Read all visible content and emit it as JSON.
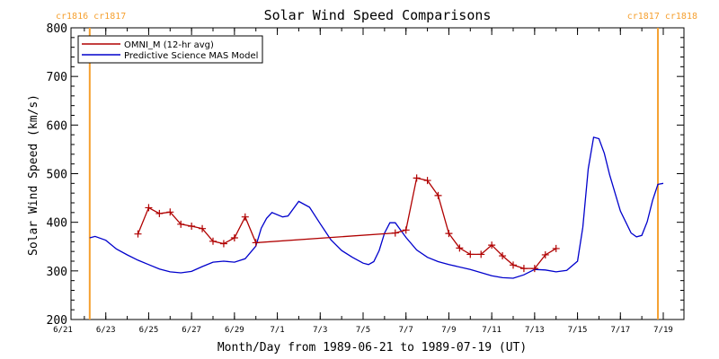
{
  "chart_data": {
    "type": "line",
    "title": "Solar Wind Speed Comparisons",
    "xlabel": "Month/Day from 1989-06-21 to 1989-07-19 (UT)",
    "ylabel": "Solar Wind Speed (km/s)",
    "xlim": [
      "1989-06-21",
      "1989-07-19"
    ],
    "ylim": [
      200,
      800
    ],
    "y_ticks": [
      200,
      300,
      400,
      500,
      600,
      700,
      800
    ],
    "x_ticks": [
      {
        "date": "1989-06-21",
        "label": "6/21"
      },
      {
        "date": "1989-06-23",
        "label": "6/23"
      },
      {
        "date": "1989-06-25",
        "label": "6/25"
      },
      {
        "date": "1989-06-27",
        "label": "6/27"
      },
      {
        "date": "1989-06-29",
        "label": "6/29"
      },
      {
        "date": "1989-07-01",
        "label": "7/1"
      },
      {
        "date": "1989-07-03",
        "label": "7/3"
      },
      {
        "date": "1989-07-05",
        "label": "7/5"
      },
      {
        "date": "1989-07-07",
        "label": "7/7"
      },
      {
        "date": "1989-07-09",
        "label": "7/9"
      },
      {
        "date": "1989-07-11",
        "label": "7/11"
      },
      {
        "date": "1989-07-13",
        "label": "7/13"
      },
      {
        "date": "1989-07-15",
        "label": "7/15"
      },
      {
        "date": "1989-07-17",
        "label": "7/17"
      },
      {
        "date": "1989-07-19",
        "label": "7/19"
      }
    ],
    "legend_position": "top-left",
    "carrington_markers": [
      {
        "date": "1989-06-22 06:00",
        "labels": [
          "cr1816",
          "cr1817"
        ],
        "label_side": "left",
        "color": "#f5a030"
      },
      {
        "date": "1989-07-18 18:00",
        "labels": [
          "cr1817",
          "cr1818"
        ],
        "label_side": "right",
        "color": "#f5a030"
      }
    ],
    "series": [
      {
        "name": "OMNI_M (12-hr avg)",
        "color": "#b00000",
        "marker": "plus",
        "points": [
          [
            "1989-06-24 12:00",
            376
          ],
          [
            "1989-06-25 00:00",
            430
          ],
          [
            "1989-06-25 12:00",
            418
          ],
          [
            "1989-06-26 00:00",
            421
          ],
          [
            "1989-06-26 12:00",
            396
          ],
          [
            "1989-06-27 00:00",
            392
          ],
          [
            "1989-06-27 12:00",
            387
          ],
          [
            "1989-06-28 00:00",
            361
          ],
          [
            "1989-06-28 12:00",
            356
          ],
          [
            "1989-06-29 00:00",
            368
          ],
          [
            "1989-06-29 12:00",
            411
          ],
          [
            "1989-06-30 00:00",
            358
          ],
          [
            "1989-07-06 12:00",
            378
          ],
          [
            "1989-07-07 00:00",
            384
          ],
          [
            "1989-07-07 12:00",
            491
          ],
          [
            "1989-07-08 00:00",
            486
          ],
          [
            "1989-07-08 12:00",
            455
          ],
          [
            "1989-07-09 00:00",
            377
          ],
          [
            "1989-07-09 12:00",
            347
          ],
          [
            "1989-07-10 00:00",
            334
          ],
          [
            "1989-07-10 12:00",
            334
          ],
          [
            "1989-07-11 00:00",
            353
          ],
          [
            "1989-07-11 12:00",
            331
          ],
          [
            "1989-07-12 00:00",
            312
          ],
          [
            "1989-07-12 12:00",
            305
          ],
          [
            "1989-07-13 00:00",
            305
          ],
          [
            "1989-07-13 12:00",
            333
          ],
          [
            "1989-07-14 00:00",
            346
          ]
        ]
      },
      {
        "name": "Predictive Science MAS Model",
        "color": "#0000cc",
        "marker": "none",
        "points": [
          [
            "1989-06-22 06:00",
            368
          ],
          [
            "1989-06-22 12:00",
            371
          ],
          [
            "1989-06-23 00:00",
            363
          ],
          [
            "1989-06-23 12:00",
            345
          ],
          [
            "1989-06-24 00:00",
            333
          ],
          [
            "1989-06-24 12:00",
            322
          ],
          [
            "1989-06-25 00:00",
            313
          ],
          [
            "1989-06-25 12:00",
            304
          ],
          [
            "1989-06-26 00:00",
            298
          ],
          [
            "1989-06-26 12:00",
            296
          ],
          [
            "1989-06-27 00:00",
            299
          ],
          [
            "1989-06-27 12:00",
            309
          ],
          [
            "1989-06-28 00:00",
            318
          ],
          [
            "1989-06-28 12:00",
            320
          ],
          [
            "1989-06-29 00:00",
            318
          ],
          [
            "1989-06-29 12:00",
            325
          ],
          [
            "1989-06-30 00:00",
            351
          ],
          [
            "1989-06-30 06:00",
            388
          ],
          [
            "1989-06-30 12:00",
            408
          ],
          [
            "1989-06-30 18:00",
            420
          ],
          [
            "1989-07-01 06:00",
            411
          ],
          [
            "1989-07-01 12:00",
            413
          ],
          [
            "1989-07-02 00:00",
            443
          ],
          [
            "1989-07-02 12:00",
            431
          ],
          [
            "1989-07-03 00:00",
            397
          ],
          [
            "1989-07-03 12:00",
            364
          ],
          [
            "1989-07-04 00:00",
            342
          ],
          [
            "1989-07-04 12:00",
            328
          ],
          [
            "1989-07-05 00:00",
            316
          ],
          [
            "1989-07-05 06:00",
            313
          ],
          [
            "1989-07-05 12:00",
            319
          ],
          [
            "1989-07-05 18:00",
            342
          ],
          [
            "1989-07-06 00:00",
            378
          ],
          [
            "1989-07-06 06:00",
            399
          ],
          [
            "1989-07-06 12:00",
            399
          ],
          [
            "1989-07-07 00:00",
            369
          ],
          [
            "1989-07-07 12:00",
            343
          ],
          [
            "1989-07-08 00:00",
            328
          ],
          [
            "1989-07-08 12:00",
            319
          ],
          [
            "1989-07-09 00:00",
            313
          ],
          [
            "1989-07-10 00:00",
            303
          ],
          [
            "1989-07-11 00:00",
            290
          ],
          [
            "1989-07-11 12:00",
            286
          ],
          [
            "1989-07-12 00:00",
            285
          ],
          [
            "1989-07-12 12:00",
            292
          ],
          [
            "1989-07-13 00:00",
            303
          ],
          [
            "1989-07-13 12:00",
            302
          ],
          [
            "1989-07-14 00:00",
            298
          ],
          [
            "1989-07-14 12:00",
            301
          ],
          [
            "1989-07-15 00:00",
            320
          ],
          [
            "1989-07-15 06:00",
            390
          ],
          [
            "1989-07-15 12:00",
            510
          ],
          [
            "1989-07-15 18:00",
            575
          ],
          [
            "1989-07-16 00:00",
            572
          ],
          [
            "1989-07-16 06:00",
            542
          ],
          [
            "1989-07-16 12:00",
            497
          ],
          [
            "1989-07-17 00:00",
            423
          ],
          [
            "1989-07-17 12:00",
            378
          ],
          [
            "1989-07-17 18:00",
            370
          ],
          [
            "1989-07-18 00:00",
            373
          ],
          [
            "1989-07-18 06:00",
            401
          ],
          [
            "1989-07-18 12:00",
            445
          ],
          [
            "1989-07-18 18:00",
            478
          ],
          [
            "1989-07-19 00:00",
            480
          ]
        ]
      }
    ]
  }
}
